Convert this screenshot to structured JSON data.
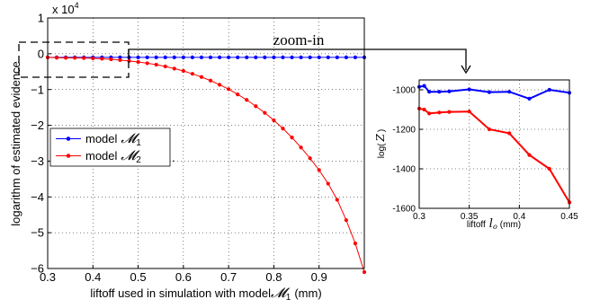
{
  "chart_data": [
    {
      "type": "line",
      "xlabel": "liftoff used in simulation with model",
      "xlabel_symbol": "𝓜",
      "xlabel_sub": "1",
      "xlabel_unit": "(mm)",
      "ylabel": "logarithm of estimated evidence",
      "exponent_label": "x 10",
      "exponent_power": "4",
      "xlim": [
        0.3,
        1.0
      ],
      "ylim": [
        -60000,
        10000
      ],
      "xticks": [
        "0.3",
        "0.4",
        "0.5",
        "0.6",
        "0.7",
        "0.8",
        "0.9"
      ],
      "yticks": [
        "1",
        "0",
        "−1",
        "−2",
        "−3",
        "−4",
        "−5",
        "−6"
      ],
      "ytick_values": [
        10000,
        0,
        -10000,
        -20000,
        -30000,
        -40000,
        -50000,
        -60000
      ],
      "grid": true,
      "legend_position": "center-left",
      "series": [
        {
          "name": "model",
          "symbol": "𝓜",
          "sub": "1",
          "color": "#0000ff",
          "x": [
            0.3,
            0.32,
            0.34,
            0.36,
            0.38,
            0.4,
            0.42,
            0.44,
            0.46,
            0.48,
            0.5,
            0.52,
            0.54,
            0.56,
            0.58,
            0.6,
            0.62,
            0.64,
            0.66,
            0.68,
            0.7,
            0.72,
            0.74,
            0.76,
            0.78,
            0.8,
            0.82,
            0.84,
            0.86,
            0.88,
            0.9,
            0.92,
            0.94,
            0.96,
            0.98,
            1.0
          ],
          "y": [
            -1000,
            -1000,
            -1000,
            -1000,
            -1000,
            -1000,
            -1000,
            -1000,
            -1000,
            -1000,
            -1000,
            -1000,
            -1000,
            -1000,
            -1000,
            -1000,
            -1000,
            -1000,
            -1000,
            -1000,
            -1000,
            -1000,
            -1000,
            -1000,
            -1000,
            -1000,
            -1000,
            -1000,
            -1000,
            -1000,
            -1000,
            -1000,
            -1000,
            -1000,
            -1000,
            -1000
          ]
        },
        {
          "name": "model",
          "symbol": "𝓜",
          "sub": "2",
          "color": "#ff0000",
          "x": [
            0.3,
            0.32,
            0.34,
            0.36,
            0.38,
            0.4,
            0.42,
            0.44,
            0.46,
            0.48,
            0.5,
            0.52,
            0.54,
            0.56,
            0.58,
            0.6,
            0.62,
            0.64,
            0.66,
            0.68,
            0.7,
            0.72,
            0.74,
            0.76,
            0.78,
            0.8,
            0.82,
            0.84,
            0.86,
            0.88,
            0.9,
            0.92,
            0.94,
            0.96,
            0.98,
            1.0
          ],
          "y": [
            -1000,
            -1100,
            -1150,
            -1150,
            -1200,
            -1300,
            -1400,
            -1550,
            -1750,
            -2000,
            -2300,
            -2650,
            -3050,
            -3550,
            -4150,
            -4800,
            -5600,
            -6500,
            -7500,
            -8650,
            -9900,
            -11350,
            -12900,
            -14650,
            -16500,
            -18600,
            -20900,
            -23400,
            -26200,
            -29200,
            -32500,
            -36300,
            -40800,
            -46500,
            -53000,
            -61000
          ]
        }
      ]
    },
    {
      "type": "line",
      "xlabel": "liftoff",
      "xlabel_symbol": "l",
      "xlabel_sub": "o",
      "xlabel_unit": "(mm)",
      "ylabel": "log(",
      "ylabel_symbol": "Z",
      "ylabel_close": ")",
      "xlim": [
        0.3,
        0.45
      ],
      "ylim": [
        -1600,
        -950
      ],
      "xticks": [
        "0.3",
        "0.35",
        "0.4",
        "0.45"
      ],
      "xtick_values": [
        0.3,
        0.35,
        0.4,
        0.45
      ],
      "yticks": [
        "-1000",
        "-1200",
        "-1400",
        "-1600"
      ],
      "ytick_values": [
        -1000,
        -1200,
        -1400,
        -1600
      ],
      "grid": true,
      "series": [
        {
          "color": "#0000ff",
          "x": [
            0.3,
            0.305,
            0.31,
            0.32,
            0.33,
            0.35,
            0.37,
            0.39,
            0.41,
            0.43,
            0.45
          ],
          "y": [
            -985,
            -980,
            -1010,
            -1010,
            -1008,
            -998,
            -1012,
            -1010,
            -1045,
            -1000,
            -1015
          ]
        },
        {
          "color": "#ff0000",
          "x": [
            0.3,
            0.305,
            0.31,
            0.32,
            0.33,
            0.35,
            0.37,
            0.39,
            0.41,
            0.43,
            0.45
          ],
          "y": [
            -1095,
            -1100,
            -1120,
            -1115,
            -1112,
            -1110,
            -1200,
            -1220,
            -1330,
            -1400,
            -1570
          ]
        }
      ]
    }
  ],
  "annotation": {
    "zoom_label": "zoom-in",
    "trailing_mark": "."
  }
}
